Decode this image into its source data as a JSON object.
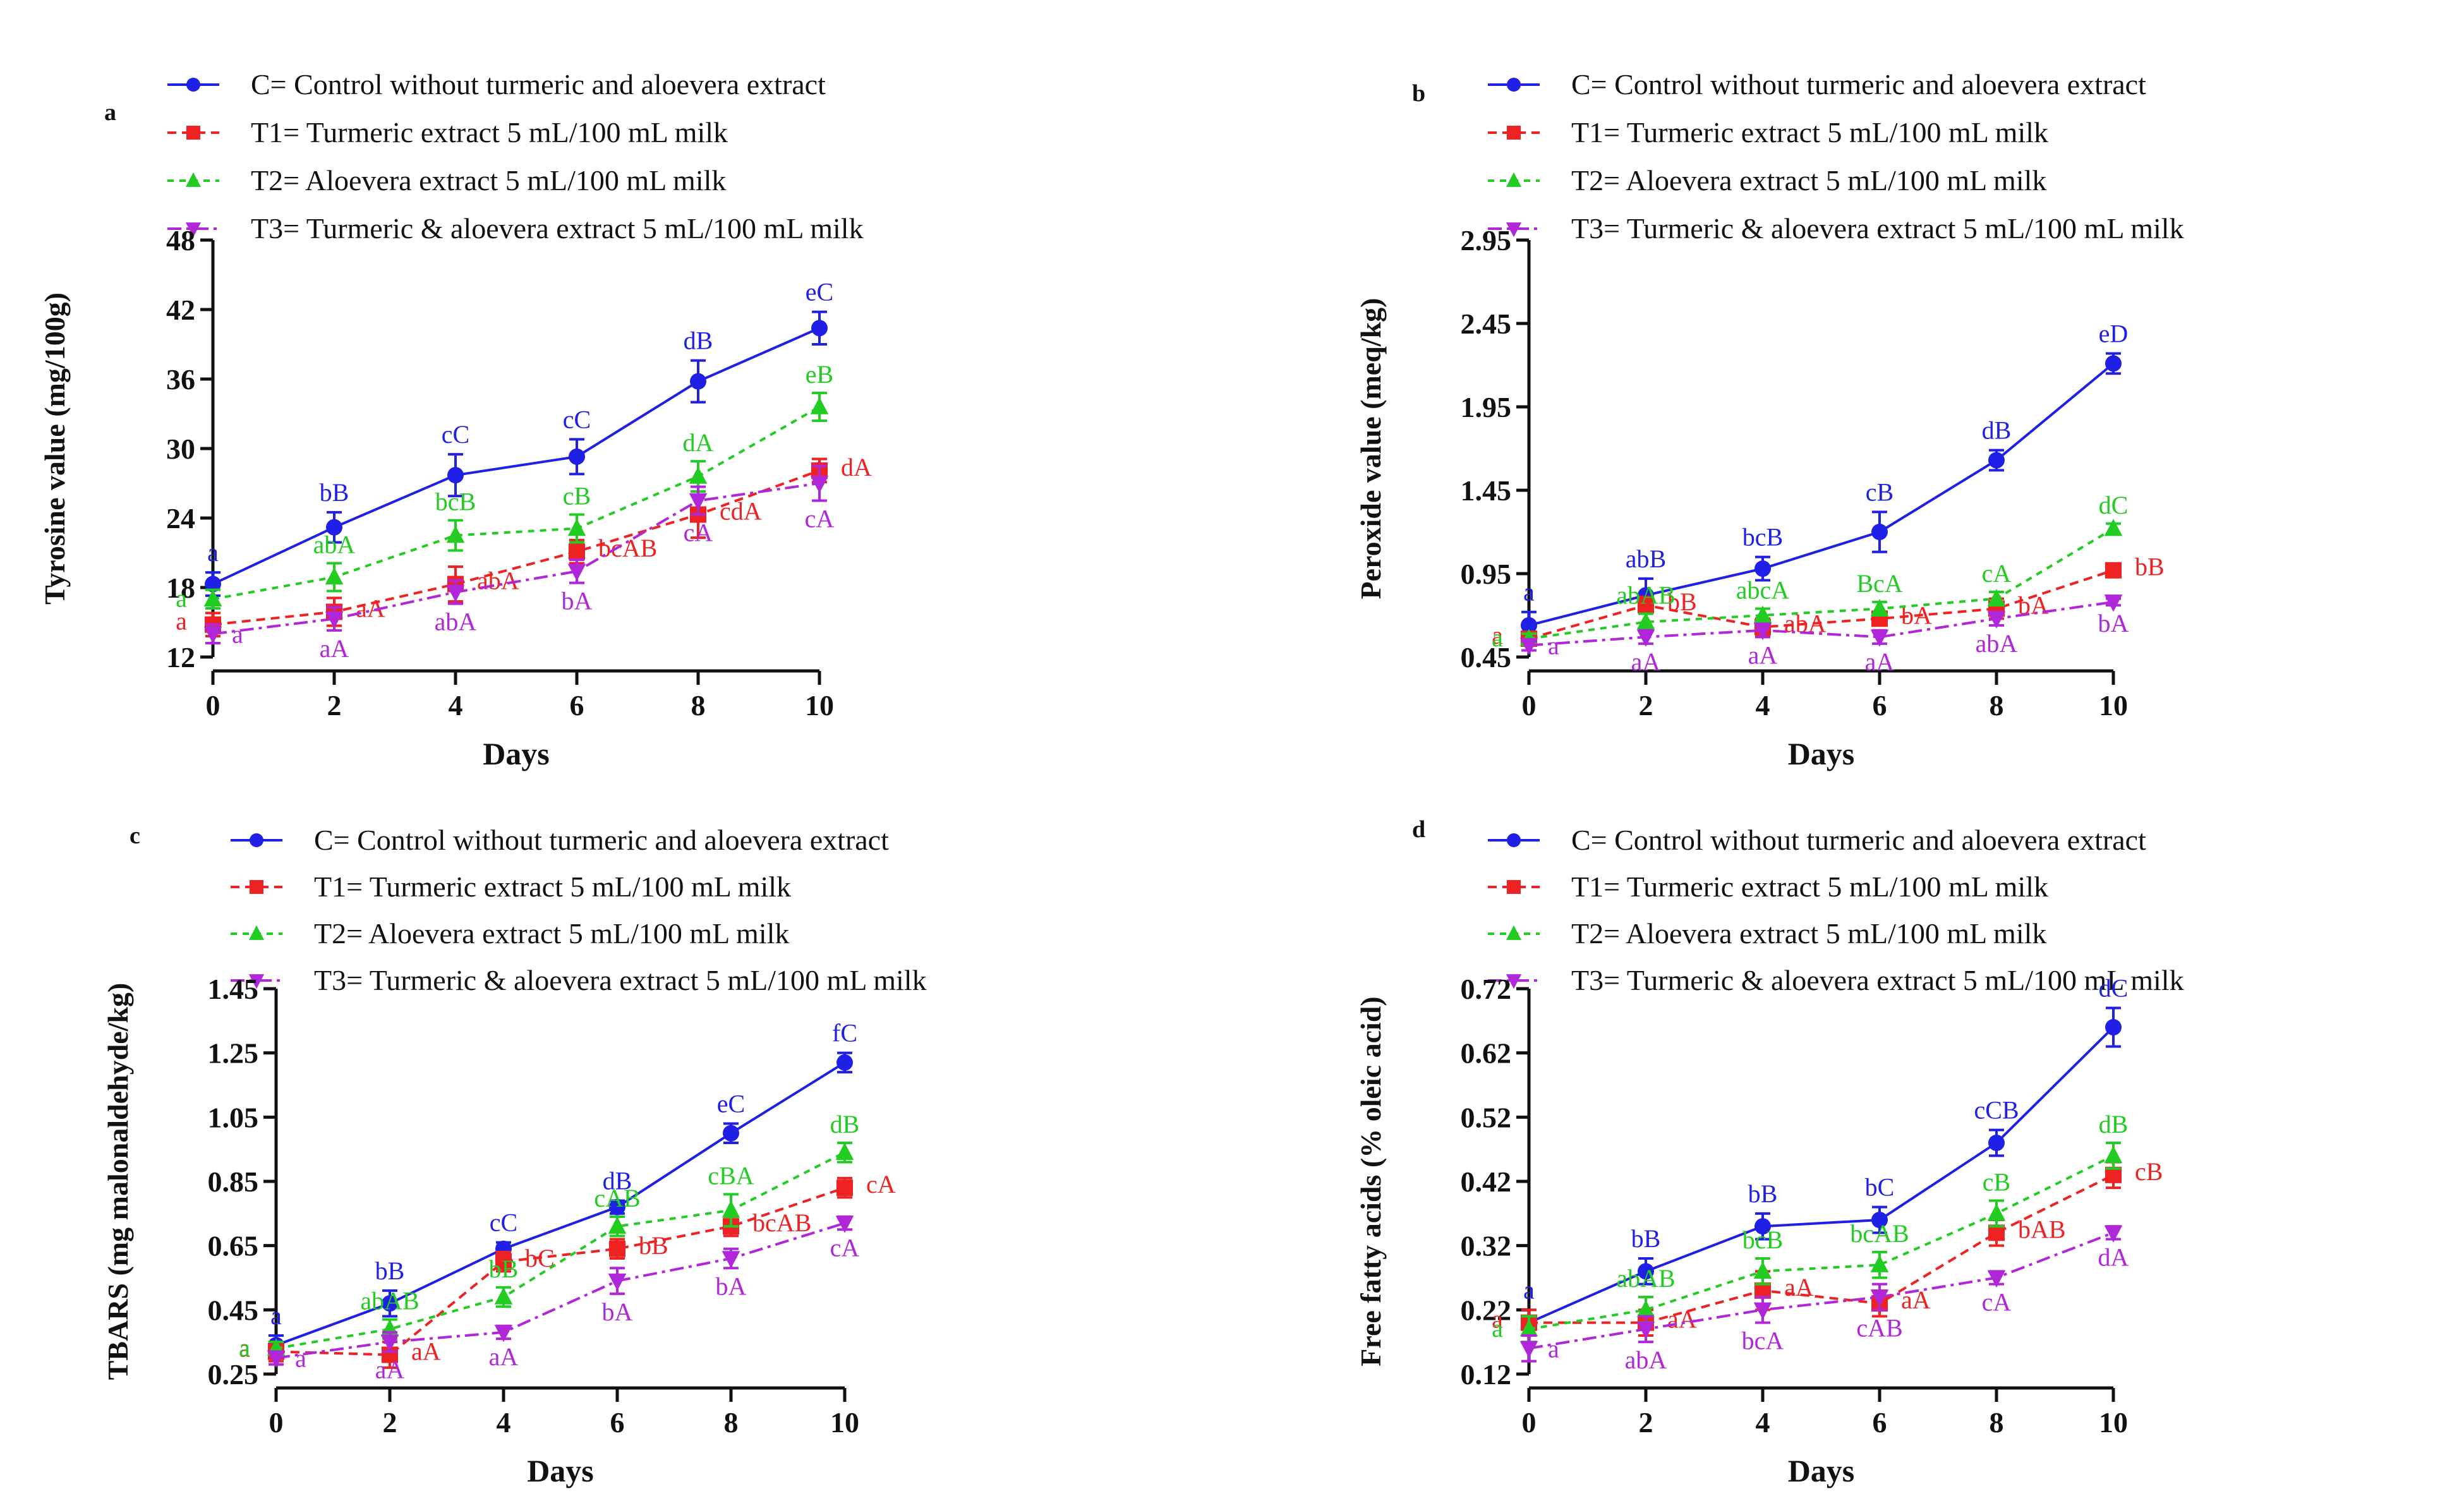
{
  "legend": [
    "C= Control without turmeric and aloevera extract",
    "T1= Turmeric extract 5 mL/100 mL milk",
    "T2= Aloevera extract 5 mL/100 mL milk",
    "T3= Turmeric & aloevera extract 5 mL/100 mL milk"
  ],
  "colors": {
    "C": "#1f1fe6",
    "T1": "#ee2222",
    "T2": "#22cc22",
    "T3": "#b026d9"
  },
  "chart_data": [
    {
      "type": "line",
      "panel": "a",
      "xlabel": "Days",
      "ylabel": "Tyrosine value (mg/100g)",
      "x": [
        0,
        2,
        4,
        6,
        8,
        10
      ],
      "ylim": [
        12,
        48
      ],
      "yticks": [
        "12",
        "18",
        "24",
        "30",
        "36",
        "42",
        "48"
      ],
      "series": [
        {
          "key": "C",
          "name": "C= Control without turmeric and aloevera extract",
          "values": [
            18.3,
            23.2,
            27.7,
            29.3,
            35.8,
            40.4
          ],
          "err": [
            1.0,
            1.3,
            1.8,
            1.5,
            1.8,
            1.4
          ],
          "labels": [
            "a",
            "bB",
            "cC",
            "cC",
            "dB",
            "eC"
          ]
        },
        {
          "key": "T1",
          "name": "T1= Turmeric extract 5 mL/100 mL milk",
          "values": [
            14.8,
            15.9,
            18.3,
            21.1,
            24.3,
            28.1
          ],
          "err": [
            1.0,
            1.2,
            1.5,
            1.0,
            2.0,
            1.0
          ],
          "labels": [
            "a",
            "aA",
            "abA",
            "bcAB",
            "cdA",
            "dA"
          ]
        },
        {
          "key": "T2",
          "name": "T2= Aloevera extract 5 mL/100 mL milk",
          "values": [
            17.0,
            18.9,
            22.5,
            23.1,
            27.6,
            33.6
          ],
          "err": [
            0.8,
            1.2,
            1.3,
            1.2,
            1.3,
            1.2
          ],
          "labels": [
            "a",
            "abA",
            "bcB",
            "cB",
            "dA",
            "eB"
          ]
        },
        {
          "key": "T3",
          "name": "T3= Turmeric & aloevera extract 5 mL/100 mL milk",
          "values": [
            14.0,
            15.3,
            17.6,
            19.4,
            25.5,
            27.0
          ],
          "err": [
            0.8,
            1.0,
            1.0,
            1.0,
            1.2,
            1.5
          ],
          "labels": [
            "a",
            "aA",
            "abA",
            "bA",
            "cA",
            "cA"
          ]
        }
      ]
    },
    {
      "type": "line",
      "panel": "b",
      "xlabel": "Days",
      "ylabel": "Peroxide value (meq/kg)",
      "x": [
        0,
        2,
        4,
        6,
        8,
        10
      ],
      "ylim": [
        0.45,
        2.95
      ],
      "yticks": [
        "0.45",
        "0.95",
        "1.45",
        "1.95",
        "2.45",
        "2.95"
      ],
      "series": [
        {
          "key": "C",
          "name": "C= Control without turmeric and aloevera extract",
          "values": [
            0.64,
            0.82,
            0.98,
            1.2,
            1.63,
            2.21
          ],
          "err": [
            0.08,
            0.1,
            0.07,
            0.12,
            0.06,
            0.06
          ],
          "labels": [
            "a",
            "abB",
            "bcB",
            "cB",
            "dB",
            "eD"
          ]
        },
        {
          "key": "T1",
          "name": "T1= Turmeric extract 5 mL/100 mL milk",
          "values": [
            0.56,
            0.76,
            0.63,
            0.68,
            0.74,
            0.97
          ],
          "err": [
            0.04,
            0.05,
            0.05,
            0.04,
            0.06,
            0.03
          ],
          "labels": [
            "a",
            "bB",
            "abA",
            "bA",
            "bA",
            "bB"
          ]
        },
        {
          "key": "T2",
          "name": "T2= Aloevera extract 5 mL/100 mL milk",
          "values": [
            0.56,
            0.66,
            0.7,
            0.74,
            0.8,
            1.22
          ],
          "err": [
            0.03,
            0.05,
            0.04,
            0.04,
            0.04,
            0.03
          ],
          "labels": [
            "a",
            "abAB",
            "abcA",
            "BcA",
            "cA",
            "dC"
          ]
        },
        {
          "key": "T3",
          "name": "T3= Turmeric & aloevera extract 5 mL/100 mL milk",
          "values": [
            0.52,
            0.57,
            0.61,
            0.57,
            0.68,
            0.78
          ],
          "err": [
            0.03,
            0.04,
            0.04,
            0.04,
            0.04,
            0.02
          ],
          "labels": [
            "a",
            "aA",
            "aA",
            "aA",
            "abA",
            "bA"
          ]
        }
      ]
    },
    {
      "type": "line",
      "panel": "c",
      "xlabel": "Days",
      "ylabel": "TBARS (mg malonaldehyde/kg)",
      "x": [
        0,
        2,
        4,
        6,
        8,
        10
      ],
      "ylim": [
        0.25,
        1.45
      ],
      "yticks": [
        "0.25",
        "0.45",
        "0.65",
        "0.85",
        "1.05",
        "1.25",
        "1.45"
      ],
      "series": [
        {
          "key": "C",
          "name": "C= Control without turmeric and aloevera extract",
          "values": [
            0.34,
            0.47,
            0.64,
            0.77,
            1.0,
            1.22
          ],
          "err": [
            0.03,
            0.04,
            0.02,
            0.02,
            0.03,
            0.03
          ],
          "labels": [
            "a",
            "bB",
            "cC",
            "dB",
            "eC",
            "fC"
          ]
        },
        {
          "key": "T1",
          "name": "T1= Turmeric extract 5 mL/100 mL milk",
          "values": [
            0.32,
            0.31,
            0.6,
            0.64,
            0.71,
            0.83
          ],
          "err": [
            0.03,
            0.04,
            0.03,
            0.03,
            0.03,
            0.03
          ],
          "labels": [
            "a",
            "aA",
            "bC",
            "bB",
            "bcAB",
            "cA"
          ]
        },
        {
          "key": "T2",
          "name": "T2= Aloevera extract 5 mL/100 mL milk",
          "values": [
            0.33,
            0.39,
            0.49,
            0.71,
            0.76,
            0.94
          ],
          "err": [
            0.02,
            0.03,
            0.03,
            0.03,
            0.05,
            0.03
          ],
          "labels": [
            "a",
            "abAB",
            "bB",
            "cAB",
            "cBA",
            "dB"
          ]
        },
        {
          "key": "T3",
          "name": "T3= Turmeric & aloevera extract 5 mL/100 mL milk",
          "values": [
            0.3,
            0.35,
            0.38,
            0.54,
            0.61,
            0.72
          ],
          "err": [
            0.02,
            0.03,
            0.02,
            0.04,
            0.03,
            0.02
          ],
          "labels": [
            "a",
            "aA",
            "aA",
            "bA",
            "bA",
            "cA"
          ]
        }
      ]
    },
    {
      "type": "line",
      "panel": "d",
      "xlabel": "Days",
      "ylabel": "Free fatty acids (% oleic acid)",
      "x": [
        0,
        2,
        4,
        6,
        8,
        10
      ],
      "ylim": [
        0.12,
        0.72
      ],
      "yticks": [
        "0.12",
        "0.22",
        "0.32",
        "0.42",
        "0.52",
        "0.62",
        "0.72"
      ],
      "series": [
        {
          "key": "C",
          "name": "C= Control without turmeric and aloevera extract",
          "values": [
            0.2,
            0.28,
            0.35,
            0.36,
            0.48,
            0.66
          ],
          "err": [
            0.02,
            0.02,
            0.02,
            0.02,
            0.02,
            0.03
          ],
          "labels": [
            "a",
            "bB",
            "bB",
            "bC",
            "cCB",
            "dC"
          ]
        },
        {
          "key": "T1",
          "name": "T1= Turmeric extract 5 mL/100 mL milk",
          "values": [
            0.2,
            0.2,
            0.25,
            0.23,
            0.34,
            0.43
          ],
          "err": [
            0.02,
            0.02,
            0.03,
            0.02,
            0.02,
            0.02
          ],
          "labels": [
            "a",
            "aA",
            "aA",
            "aA",
            "bAB",
            "cB"
          ]
        },
        {
          "key": "T2",
          "name": "T2= Aloevera extract 5 mL/100 mL milk",
          "values": [
            0.19,
            0.22,
            0.28,
            0.29,
            0.37,
            0.46
          ],
          "err": [
            0.02,
            0.02,
            0.02,
            0.02,
            0.02,
            0.02
          ],
          "labels": [
            "a",
            "abAB",
            "bcB",
            "bcAB",
            "cB",
            "dB"
          ]
        },
        {
          "key": "T3",
          "name": "T3= Turmeric & aloevera extract 5 mL/100 mL milk",
          "values": [
            0.16,
            0.19,
            0.22,
            0.24,
            0.27,
            0.34
          ],
          "err": [
            0.02,
            0.02,
            0.02,
            0.02,
            0.01,
            0.01
          ],
          "labels": [
            "a",
            "abA",
            "bcA",
            "cAB",
            "cA",
            "dA"
          ]
        }
      ]
    }
  ]
}
